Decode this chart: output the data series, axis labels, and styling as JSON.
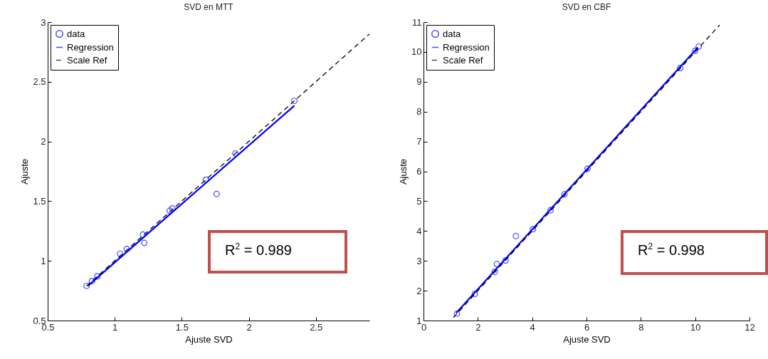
{
  "chart_data": [
    {
      "type": "scatter",
      "title": "SVD en MTT",
      "xlabel": "Ajuste SVD",
      "ylabel": "Ajuste",
      "xlim": [
        0.5,
        2.9
      ],
      "ylim": [
        0.5,
        3
      ],
      "xticks": [
        0.5,
        {
          "value": 1,
          "label": "1"
        },
        1.5,
        {
          "value": 2,
          "label": "2"
        },
        2.5
      ],
      "yticks": [
        0.5,
        {
          "value": 1,
          "label": "1"
        },
        1.5,
        {
          "value": 2,
          "label": "2"
        },
        2.5,
        {
          "value": 3,
          "label": "3"
        }
      ],
      "grid": false,
      "legend": "top left",
      "annotations": [
        "R$^{2}$ = 0.989"
      ],
      "series": [
        {
          "name": "data",
          "type": "scatter",
          "color": "#0000ff",
          "marker": "circle",
          "x": [
            0.79,
            0.83,
            0.87,
            1.04,
            1.09,
            1.21,
            1.22,
            1.41,
            1.43,
            1.68,
            1.76,
            1.9,
            2.34
          ],
          "values": [
            0.79,
            0.83,
            0.87,
            1.06,
            1.1,
            1.22,
            1.15,
            1.42,
            1.44,
            1.68,
            1.56,
            1.9,
            2.34
          ]
        },
        {
          "name": "Regression",
          "type": "line",
          "color": "#0000ff",
          "line_style": "solid",
          "marker": "none",
          "x": [
            0.8,
            2.34
          ],
          "values": [
            0.79,
            2.3
          ]
        },
        {
          "name": "Scale Ref",
          "type": "line",
          "color": "#000000",
          "line_style": "dashed",
          "marker": "none",
          "x": [
            0.79,
            2.9
          ],
          "values": [
            0.79,
            2.9
          ]
        }
      ]
    },
    {
      "type": "scatter",
      "title": "SVD en CBF",
      "xlabel": "Ajuste SVD",
      "ylabel": "Ajuste",
      "xlim": [
        0,
        12
      ],
      "ylim": [
        1,
        11
      ],
      "xticks": [
        0,
        2,
        4,
        6,
        8,
        10,
        12
      ],
      "yticks": [
        1,
        2,
        3,
        4,
        5,
        6,
        7,
        8,
        9,
        10,
        11
      ],
      "grid": false,
      "legend": "top left",
      "annotations": [
        "R$^{2}$ = 0.998"
      ],
      "series": [
        {
          "name": "data",
          "type": "scatter",
          "color": "#0000ff",
          "marker": "circle",
          "x": [
            1.23,
            1.89,
            2.62,
            2.7,
            3.02,
            3.4,
            4.03,
            4.68,
            5.19,
            6.04,
            9.45,
            10.0,
            10.13
          ],
          "values": [
            1.23,
            1.89,
            2.63,
            2.89,
            3.01,
            3.83,
            4.06,
            4.7,
            5.23,
            6.09,
            9.46,
            10.04,
            10.18
          ]
        },
        {
          "name": "Regression",
          "type": "line",
          "color": "#0000ff",
          "line_style": "solid",
          "marker": "none",
          "x": [
            1.2,
            10.1
          ],
          "values": [
            1.25,
            10.15
          ]
        },
        {
          "name": "Scale Ref",
          "type": "line",
          "color": "#000000",
          "line_style": "dashed",
          "marker": "none",
          "x": [
            1.1,
            10.9
          ],
          "values": [
            1.1,
            10.9
          ]
        }
      ]
    }
  ]
}
